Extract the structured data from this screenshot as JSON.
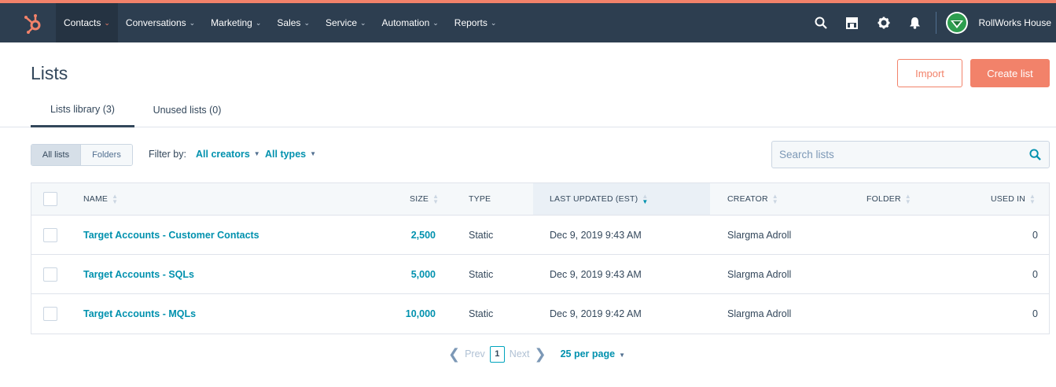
{
  "nav": {
    "items": [
      {
        "label": "Contacts",
        "active": true
      },
      {
        "label": "Conversations"
      },
      {
        "label": "Marketing"
      },
      {
        "label": "Sales"
      },
      {
        "label": "Service"
      },
      {
        "label": "Automation"
      },
      {
        "label": "Reports"
      }
    ],
    "account_name": "RollWorks House",
    "icons": [
      "search-icon",
      "marketplace-icon",
      "gear-icon",
      "bell-icon"
    ],
    "accent_color": "#f2826a",
    "bar_color": "#2d3e50"
  },
  "page": {
    "title": "Lists",
    "import_label": "Import",
    "create_label": "Create list"
  },
  "tabs": [
    {
      "label": "Lists library (3)",
      "active": true
    },
    {
      "label": "Unused lists (0)"
    }
  ],
  "toolbar": {
    "all_lists": "All lists",
    "folders": "Folders",
    "filter_by": "Filter by:",
    "creators": "All creators",
    "types": "All types",
    "search_placeholder": "Search lists"
  },
  "table": {
    "headers": {
      "name": "NAME",
      "size": "SIZE",
      "type": "TYPE",
      "updated": "LAST UPDATED (EST)",
      "creator": "CREATOR",
      "folder": "FOLDER",
      "used_in": "USED IN"
    },
    "rows": [
      {
        "name": "Target Accounts - Customer Contacts",
        "size": "2,500",
        "type": "Static",
        "updated": "Dec 9, 2019 9:43 AM",
        "creator": "Slargma Adroll",
        "folder": "",
        "used_in": "0"
      },
      {
        "name": "Target Accounts - SQLs",
        "size": "5,000",
        "type": "Static",
        "updated": "Dec 9, 2019 9:43 AM",
        "creator": "Slargma Adroll",
        "folder": "",
        "used_in": "0"
      },
      {
        "name": "Target Accounts - MQLs",
        "size": "10,000",
        "type": "Static",
        "updated": "Dec 9, 2019 9:42 AM",
        "creator": "Slargma Adroll",
        "folder": "",
        "used_in": "0"
      }
    ]
  },
  "pager": {
    "prev": "Prev",
    "page": "1",
    "next": "Next",
    "per_page": "25 per page"
  }
}
